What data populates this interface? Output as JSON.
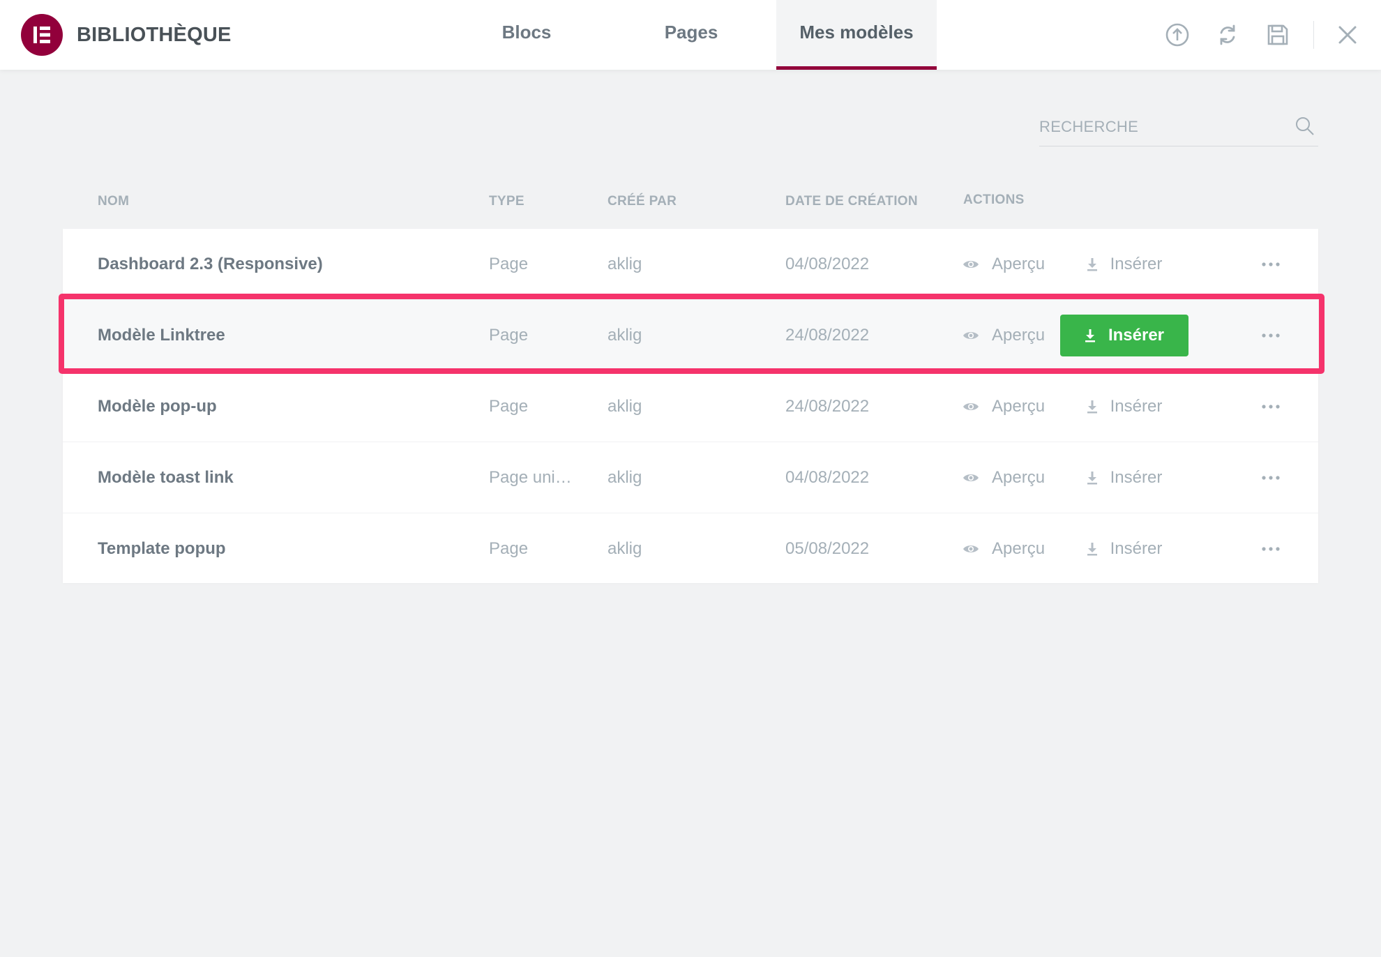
{
  "header": {
    "brand": "BIBLIOTHÈQUE",
    "logo_icon": "elementor-logo-icon",
    "tabs": [
      {
        "label": "Blocs",
        "active": false
      },
      {
        "label": "Pages",
        "active": false
      },
      {
        "label": "Mes modèles",
        "active": true
      }
    ],
    "icons": [
      "upload-icon",
      "sync-icon",
      "save-icon",
      "close-icon"
    ],
    "accent_color": "#92003b"
  },
  "search": {
    "placeholder": "RECHERCHE",
    "value": ""
  },
  "table": {
    "columns": [
      "NOM",
      "TYPE",
      "CRÉÉ PAR",
      "DATE DE CRÉATION",
      "ACTIONS"
    ],
    "preview_label": "Aperçu",
    "insert_label": "Insérer",
    "insert_color": "#39b54a",
    "rows": [
      {
        "name": "Dashboard 2.3 (Responsive)",
        "type": "Page",
        "author": "aklig",
        "date": "04/08/2022",
        "hovered": false
      },
      {
        "name": "Modèle Linktree",
        "type": "Page",
        "author": "aklig",
        "date": "24/08/2022",
        "hovered": true
      },
      {
        "name": "Modèle pop-up",
        "type": "Page",
        "author": "aklig",
        "date": "24/08/2022",
        "hovered": false
      },
      {
        "name": "Modèle toast link",
        "type": "Page unique",
        "author": "aklig",
        "date": "04/08/2022",
        "hovered": false
      },
      {
        "name": "Template popup",
        "type": "Page",
        "author": "aklig",
        "date": "05/08/2022",
        "hovered": false
      }
    ]
  },
  "annotation_color": "#f5336b"
}
